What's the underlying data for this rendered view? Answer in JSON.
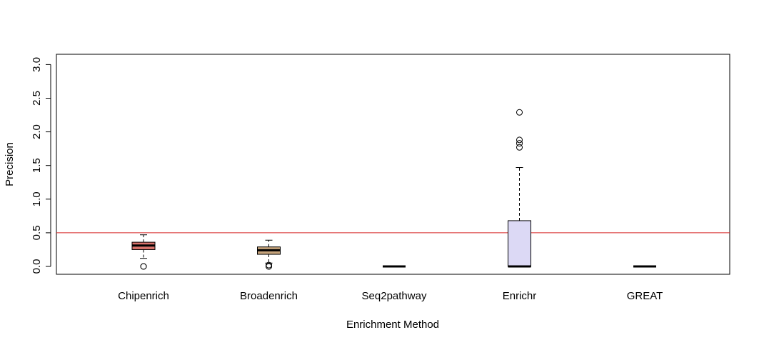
{
  "chart_data": {
    "type": "boxplot",
    "title": "",
    "xlabel": "Enrichment Method",
    "ylabel": "Precision",
    "ylim": [
      0,
      3.0
    ],
    "yticks": [
      "0.0",
      "0.5",
      "1.0",
      "1.5",
      "2.0",
      "2.5",
      "3.0"
    ],
    "reference_line": {
      "y": 0.5,
      "color": "#d62728"
    },
    "categories": [
      "Chipenrich",
      "Broadenrich",
      "Seq2pathway",
      "Enrichr",
      "GREAT"
    ],
    "boxes": [
      {
        "name": "Chipenrich",
        "color": "#d9726b",
        "whisker_low": 0.12,
        "q1": 0.25,
        "median": 0.31,
        "q3": 0.36,
        "whisker_high": 0.47,
        "outliers": [
          0.0,
          0.0
        ]
      },
      {
        "name": "Broadenrich",
        "color": "#c6a47c",
        "whisker_low": 0.05,
        "q1": 0.18,
        "median": 0.24,
        "q3": 0.29,
        "whisker_high": 0.39,
        "outliers": [
          0.02,
          0.0,
          0.0
        ]
      },
      {
        "name": "Seq2pathway",
        "color": "#000000",
        "whisker_low": 0.0,
        "q1": 0.0,
        "median": 0.0,
        "q3": 0.0,
        "whisker_high": 0.0,
        "outliers": []
      },
      {
        "name": "Enrichr",
        "color": "#dcd9f5",
        "whisker_low": 0.0,
        "q1": 0.0,
        "median": 0.0,
        "q3": 0.68,
        "whisker_high": 1.47,
        "outliers": [
          1.77,
          1.83,
          1.88,
          2.29
        ]
      },
      {
        "name": "GREAT",
        "color": "#000000",
        "whisker_low": 0.0,
        "q1": 0.0,
        "median": 0.0,
        "q3": 0.0,
        "whisker_high": 0.0,
        "outliers": []
      }
    ]
  }
}
